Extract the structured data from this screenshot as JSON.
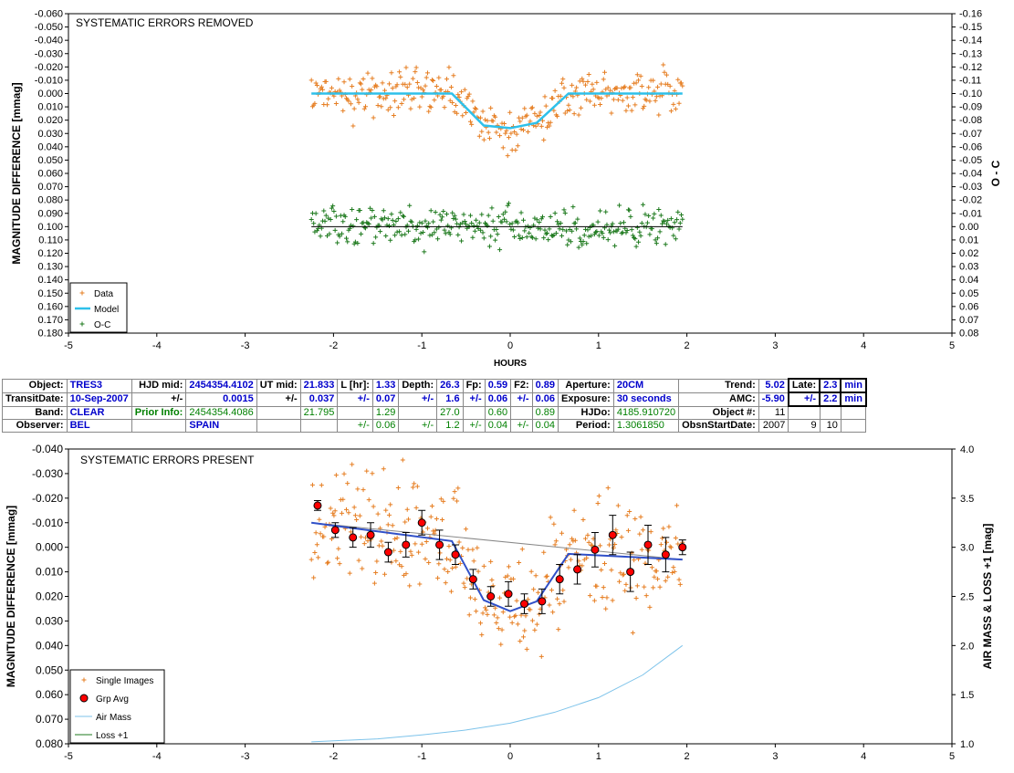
{
  "colors": {
    "data": "#e67e22",
    "model": "#2ec0ea",
    "oc": "#1e7a1e",
    "grp": "#ff0000",
    "airmass": "#7dc3ea",
    "trend": "#3050c8",
    "loss": "#1e7a1e",
    "blue_text": "#0000cc",
    "green_text": "#008000"
  },
  "top": {
    "title": "SYSTEMATIC ERRORS REMOVED",
    "ylabel": "MAGNITUDE DIFFERENCE [mmag]",
    "y2label": "O - C",
    "xlabel": "HOURS",
    "yticks": [
      "-0.060",
      "-0.050",
      "-0.040",
      "-0.030",
      "-0.020",
      "-0.010",
      "0.000",
      "0.010",
      "0.020",
      "0.030",
      "0.040",
      "0.050",
      "0.060",
      "0.070",
      "0.080",
      "0.090",
      "0.100",
      "0.110",
      "0.120",
      "0.130",
      "0.140",
      "0.150",
      "0.160",
      "0.170",
      "0.180"
    ],
    "y2ticks": [
      "-0.16",
      "-0.15",
      "-0.14",
      "-0.13",
      "-0.12",
      "-0.11",
      "-0.10",
      "-0.09",
      "-0.08",
      "-0.07",
      "-0.06",
      "-0.05",
      "-0.04",
      "-0.03",
      "-0.02",
      "-0.01",
      "0.00",
      "0.01",
      "0.02",
      "0.03",
      "0.04",
      "0.05",
      "0.06",
      "0.07",
      "0.08"
    ],
    "xticks": [
      "-5",
      "-4",
      "-3",
      "-2",
      "-1",
      "0",
      "1",
      "2",
      "3",
      "4",
      "5"
    ],
    "legend": [
      "Data",
      "Model",
      "O-C"
    ]
  },
  "table": {
    "rows": [
      [
        [
          "Object:",
          "lbl"
        ],
        [
          "TRES3",
          "blue left"
        ],
        [
          "HJD mid:",
          "lbl"
        ],
        [
          "2454354.4102",
          "blue"
        ],
        [
          "UT mid:",
          "lbl"
        ],
        [
          "21.833",
          "blue"
        ],
        [
          "L [hr]:",
          "lbl"
        ],
        [
          "1.33",
          "blue"
        ],
        [
          "Depth:",
          "lbl"
        ],
        [
          "26.3",
          "blue"
        ],
        [
          "Fp:",
          "lbl"
        ],
        [
          "0.59",
          "blue"
        ],
        [
          "F2:",
          "lbl"
        ],
        [
          "0.89",
          "blue"
        ],
        [
          "Aperture:",
          "lbl"
        ],
        [
          "20CM",
          "blue left"
        ],
        [
          "Trend:",
          "lbl"
        ],
        [
          "5.02",
          "blue"
        ],
        [
          "Late:",
          "lbl box"
        ],
        [
          "2.3",
          "blue box"
        ],
        [
          "min",
          "blue box"
        ]
      ],
      [
        [
          "TransitDate:",
          "lbl"
        ],
        [
          "10-Sep-2007",
          "blue left"
        ],
        [
          "+/-",
          "lbl"
        ],
        [
          "0.0015",
          "blue"
        ],
        [
          "+/-",
          "lbl"
        ],
        [
          "0.037",
          "blue"
        ],
        [
          "+/-",
          "blue"
        ],
        [
          "0.07",
          "blue"
        ],
        [
          "+/-",
          "blue"
        ],
        [
          "1.6",
          "blue"
        ],
        [
          "+/-",
          "blue"
        ],
        [
          "0.06",
          "blue"
        ],
        [
          "+/-",
          "blue"
        ],
        [
          "0.06",
          "blue"
        ],
        [
          "Exposure:",
          "lbl"
        ],
        [
          "30 seconds",
          "blue left"
        ],
        [
          "AMC:",
          "lbl"
        ],
        [
          "-5.90",
          "blue"
        ],
        [
          "+/-",
          "blue box"
        ],
        [
          "2.2",
          "blue box"
        ],
        [
          "min",
          "blue box"
        ]
      ],
      [
        [
          "Band:",
          "lbl"
        ],
        [
          "CLEAR",
          "blue left"
        ],
        [
          "Prior Info:",
          "greenb"
        ],
        [
          "2454354.4086",
          "green"
        ],
        [
          "",
          "plain"
        ],
        [
          "21.795",
          "green"
        ],
        [
          "",
          "plain"
        ],
        [
          "1.29",
          "green"
        ],
        [
          "",
          "plain"
        ],
        [
          "27.0",
          "green"
        ],
        [
          "",
          "plain"
        ],
        [
          "0.60",
          "green"
        ],
        [
          "",
          "plain"
        ],
        [
          "0.89",
          "green"
        ],
        [
          "HJDo:",
          "lbl"
        ],
        [
          "4185.910720",
          "green left"
        ],
        [
          "Object #:",
          "lbl"
        ],
        [
          "11",
          "plain"
        ],
        [
          "",
          "plain"
        ],
        [
          "",
          "plain"
        ],
        [
          "",
          "plain"
        ]
      ],
      [
        [
          "Observer:",
          "lbl"
        ],
        [
          "BEL",
          "blue left"
        ],
        [
          "",
          "plain"
        ],
        [
          "SPAIN",
          "blue left"
        ],
        [
          "",
          "plain"
        ],
        [
          "",
          "plain"
        ],
        [
          "+/-",
          "green"
        ],
        [
          "0.06",
          "green"
        ],
        [
          "+/-",
          "green"
        ],
        [
          "1.2",
          "green"
        ],
        [
          "+/-",
          "green"
        ],
        [
          "0.04",
          "green"
        ],
        [
          "+/-",
          "green"
        ],
        [
          "0.04",
          "green"
        ],
        [
          "Period:",
          "lbl"
        ],
        [
          "1.3061850",
          "green left"
        ],
        [
          "ObsnStartDate:",
          "lbl"
        ],
        [
          "2007",
          "plain"
        ],
        [
          "9",
          "plain"
        ],
        [
          "10",
          "plain"
        ],
        [
          "",
          "plain"
        ]
      ]
    ]
  },
  "bottom": {
    "title": "SYSTEMATIC ERRORS PRESENT",
    "ylabel": "MAGNITUDE DIFFERENCE [mmag]",
    "y2label": "AIR MASS & LOSS +1 [mag]",
    "yticks": [
      "-0.040",
      "-0.030",
      "-0.020",
      "-0.010",
      "0.000",
      "0.010",
      "0.020",
      "0.030",
      "0.040",
      "0.050",
      "0.060",
      "0.070",
      "0.080"
    ],
    "y2ticks": [
      "4.0",
      "3.5",
      "3.0",
      "2.5",
      "2.0",
      "1.5",
      "1.0"
    ],
    "xticks": [
      "-5",
      "-4",
      "-3",
      "-2",
      "-1",
      "0",
      "1",
      "2",
      "3",
      "4",
      "5"
    ],
    "legend": [
      "Single Images",
      "Grp Avg",
      "Air Mass",
      "Loss +1"
    ]
  },
  "chart_data": [
    {
      "type": "scatter",
      "title": "SYSTEMATIC ERRORS REMOVED",
      "xlabel": "HOURS",
      "ylabel": "MAGNITUDE DIFFERENCE [mmag]",
      "y2label": "O - C",
      "xlim": [
        -5,
        5
      ],
      "ylim": [
        -0.06,
        0.18
      ],
      "y2lim": [
        -0.16,
        0.08
      ],
      "y_reversed": true,
      "legend_position": "bottom-left",
      "series": [
        {
          "name": "Data",
          "kind": "points",
          "x_range": [
            -2.25,
            1.95
          ],
          "count": 330,
          "scatter_sd": 0.011
        },
        {
          "name": "Model",
          "kind": "line",
          "x": [
            -2.25,
            -0.66,
            -0.3,
            0.0,
            0.3,
            0.66,
            1.95
          ],
          "y": [
            0.0,
            0.0,
            0.024,
            0.026,
            0.022,
            0.0,
            0.0
          ]
        },
        {
          "name": "O-C",
          "kind": "points",
          "x_range": [
            -2.25,
            1.95
          ],
          "count": 330,
          "center": 0.1,
          "scatter_sd": 0.011,
          "axis": "y2"
        }
      ]
    },
    {
      "type": "scatter",
      "title": "SYSTEMATIC ERRORS PRESENT",
      "ylabel": "MAGNITUDE DIFFERENCE [mmag]",
      "y2label": "AIR MASS & LOSS +1 [mag]",
      "xlim": [
        -5,
        5
      ],
      "ylim": [
        -0.04,
        0.08
      ],
      "y2lim": [
        1.0,
        4.0
      ],
      "y_reversed": true,
      "legend_position": "bottom-left",
      "series": [
        {
          "name": "Single Images",
          "kind": "points",
          "x_range": [
            -2.25,
            1.95
          ],
          "count": 330,
          "scatter_sd": 0.016
        },
        {
          "name": "Grp Avg",
          "kind": "errorbars",
          "x": [
            -2.18,
            -1.98,
            -1.78,
            -1.58,
            -1.38,
            -1.18,
            -1.0,
            -0.8,
            -0.62,
            -0.42,
            -0.22,
            -0.02,
            0.16,
            0.36,
            0.56,
            0.76,
            0.96,
            1.16,
            1.36,
            1.56,
            1.76,
            1.95
          ],
          "y": [
            -0.017,
            -0.007,
            -0.004,
            -0.005,
            0.002,
            -0.001,
            -0.01,
            -0.001,
            0.003,
            0.013,
            0.02,
            0.019,
            0.023,
            0.022,
            0.013,
            0.009,
            0.001,
            -0.005,
            0.01,
            -0.001,
            0.003,
            0.0
          ],
          "err": [
            0.002,
            0.003,
            0.004,
            0.005,
            0.004,
            0.005,
            0.005,
            0.006,
            0.004,
            0.004,
            0.004,
            0.005,
            0.004,
            0.005,
            0.006,
            0.006,
            0.007,
            0.008,
            0.008,
            0.008,
            0.007,
            0.003
          ]
        },
        {
          "name": "trend_model",
          "kind": "line",
          "x": [
            -2.25,
            -0.66,
            -0.3,
            0.0,
            0.3,
            0.66,
            1.95
          ],
          "y": [
            -0.01,
            -0.0025,
            0.0215,
            0.026,
            0.022,
            0.0027,
            0.005
          ]
        },
        {
          "name": "trend_baseline",
          "kind": "line",
          "x": [
            -2.25,
            1.95
          ],
          "y": [
            -0.01,
            0.005
          ]
        },
        {
          "name": "Air Mass",
          "kind": "line",
          "axis": "y2",
          "x": [
            -2.25,
            -1.5,
            -1.0,
            -0.5,
            0.0,
            0.5,
            1.0,
            1.5,
            1.95
          ],
          "y": [
            1.02,
            1.05,
            1.09,
            1.14,
            1.21,
            1.32,
            1.47,
            1.7,
            2.0
          ]
        },
        {
          "name": "Loss +1",
          "kind": "line",
          "axis": "y2"
        }
      ]
    }
  ]
}
